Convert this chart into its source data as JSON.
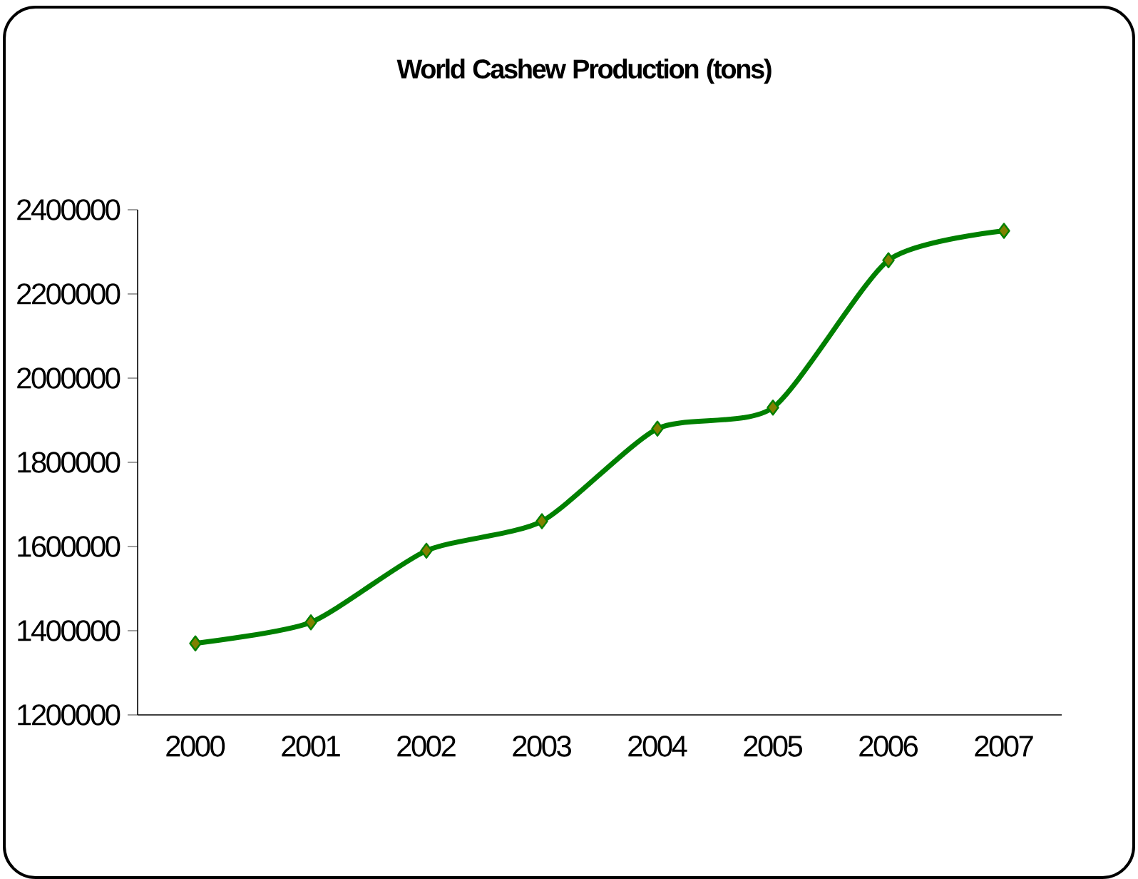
{
  "chart_data": {
    "type": "line",
    "title": "World Cashew Production (tons)",
    "categories": [
      "2000",
      "2001",
      "2002",
      "2003",
      "2004",
      "2005",
      "2006",
      "2007"
    ],
    "values": [
      1370000,
      1420000,
      1590000,
      1660000,
      1880000,
      1930000,
      2280000,
      2350000
    ],
    "color": "#008000",
    "marker": "diamond",
    "line_style": "solid",
    "ylim": [
      1200000,
      2400000
    ],
    "yticks": [
      1200000,
      1400000,
      1600000,
      1800000,
      2000000,
      2200000,
      2400000
    ]
  }
}
